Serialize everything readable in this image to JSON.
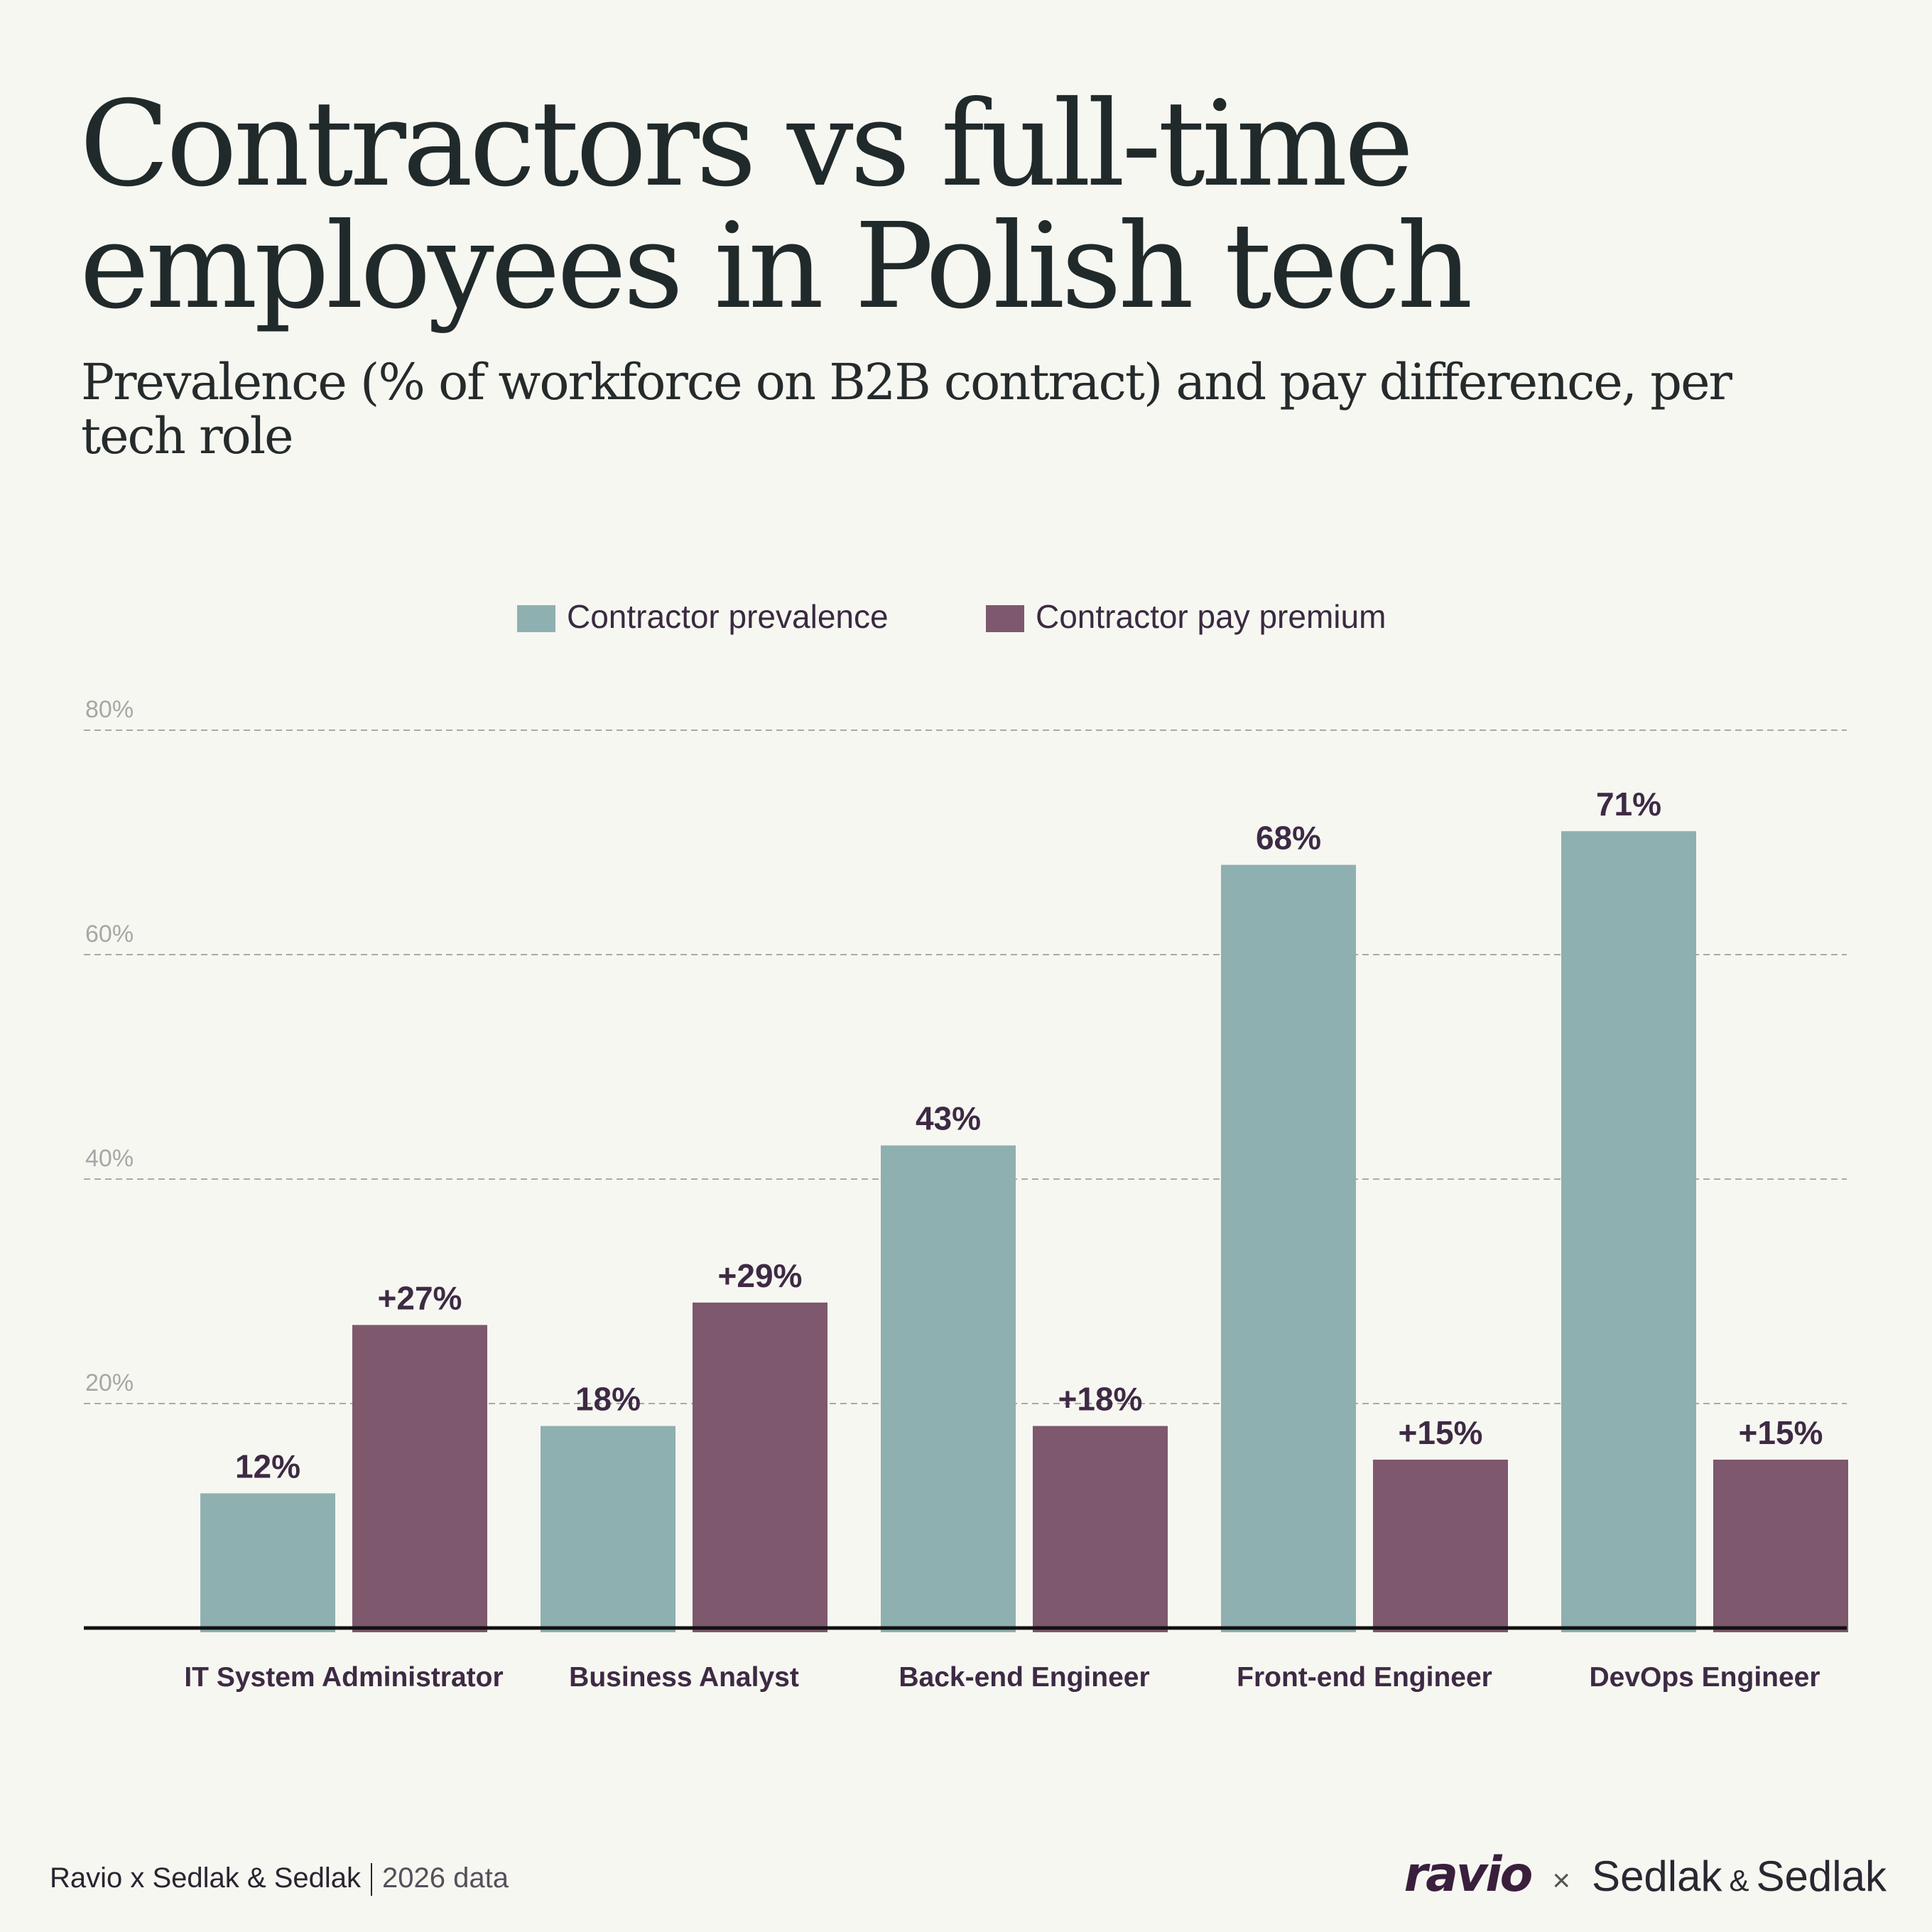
{
  "title": "Contractors vs full-time\nemployees in Polish tech",
  "subtitle": "Prevalence (% of workforce on B2B contract) and pay difference, per tech role",
  "chart_data": {
    "type": "bar",
    "categories": [
      "IT System Administrator",
      "Business Analyst",
      "Back-end Engineer",
      "Front-end Engineer",
      "DevOps Engineer"
    ],
    "series": [
      {
        "name": "Contractor prevalence",
        "values": [
          12,
          18,
          43,
          68,
          71
        ],
        "labels": [
          "12%",
          "18%",
          "43%",
          "68%",
          "71%"
        ],
        "color": "#8fb0b0"
      },
      {
        "name": "Contractor pay premium",
        "values": [
          27,
          29,
          18,
          15,
          15
        ],
        "labels": [
          "+27%",
          "+29%",
          "+18%",
          "+15%",
          "+15%"
        ],
        "color": "#7e586d"
      }
    ],
    "yticks": [
      "20%",
      "40%",
      "60%",
      "80%"
    ],
    "ytick_values": [
      20,
      40,
      60,
      80
    ],
    "ylim": [
      0,
      80
    ],
    "grid": true,
    "legend_position": "top-center",
    "label_color": "#3e2a44"
  },
  "footer": {
    "source": "Ravio x Sedlak & Sedlak",
    "year": "2026 data",
    "logo_ravio": "ravio",
    "logo_x": "×",
    "logo_sedlak_1": "Sedlak",
    "logo_sedlak_amp": "&",
    "logo_sedlak_2": "Sedlak"
  }
}
